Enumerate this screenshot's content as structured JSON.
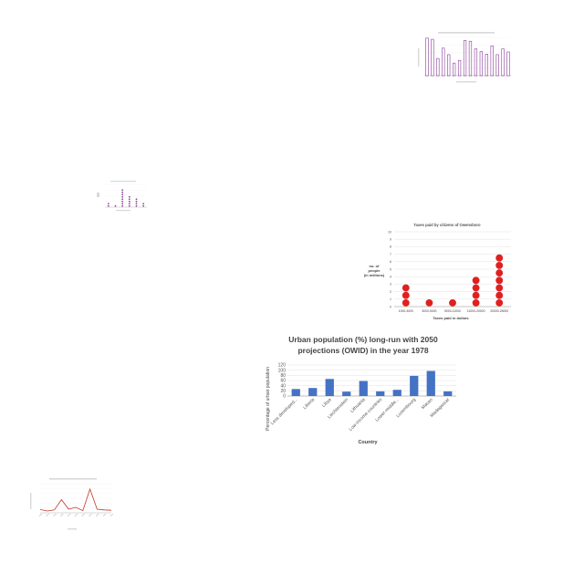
{
  "chart_data": [
    {
      "id": "urban",
      "type": "bar",
      "title_lines": [
        "Urban population (%) long-run with 2050",
        "projections (OWID) in the year 1978"
      ],
      "xlabel": "Country",
      "ylabel": "Percentage of urban population",
      "ylim": [
        0,
        120
      ],
      "yticks": [
        "0",
        "20",
        "40",
        "60",
        "80",
        "100",
        "120"
      ],
      "categories": [
        "Less developed...",
        "Liberia",
        "Libya",
        "Liechtenstein",
        "Lithuania",
        "Low-income countries",
        "Lower-middle...",
        "Luxembourg",
        "Macao",
        "Madagascar"
      ],
      "values": [
        27,
        31,
        66,
        17,
        58,
        18,
        24,
        78,
        97,
        18
      ],
      "color": "#4472c4",
      "grid": true
    },
    {
      "id": "taxes",
      "type": "scatter",
      "title": "Taxes paid by citizens of Owensboro",
      "xlabel": "Taxes paid in dollars",
      "ylabel_lines": [
        "no. of",
        "people",
        "(in millions)"
      ],
      "ylim": [
        0,
        10
      ],
      "yticks": [
        "0",
        "1",
        "2",
        "3",
        "4",
        "5",
        "6",
        "7",
        "8",
        "9",
        "10"
      ],
      "categories": [
        "1000-3000",
        "3000-5000",
        "5000-11000",
        "11000-20000",
        "20000-25000"
      ],
      "values": [
        3,
        1,
        1,
        4,
        7
      ],
      "color": "#e02020",
      "grid": true
    },
    {
      "id": "small-bars",
      "type": "bar",
      "values": [
        98,
        95,
        45,
        72,
        55,
        33,
        40,
        92,
        90,
        70,
        63,
        56,
        78,
        55,
        70,
        62
      ],
      "ylim": [
        0,
        100
      ],
      "color": "#8a3c9a",
      "grid": true
    },
    {
      "id": "small-dots",
      "type": "scatter",
      "values": [
        2,
        1,
        8,
        5,
        4,
        2
      ],
      "ylim": [
        0,
        10
      ],
      "color": "#8a3c9a",
      "grid": true
    },
    {
      "id": "small-line",
      "type": "line",
      "values": [
        9,
        5,
        8,
        36,
        10,
        15,
        6,
        65,
        10,
        8,
        7
      ],
      "ylim": [
        0,
        80
      ],
      "color": "#c0392b",
      "grid": true
    }
  ]
}
